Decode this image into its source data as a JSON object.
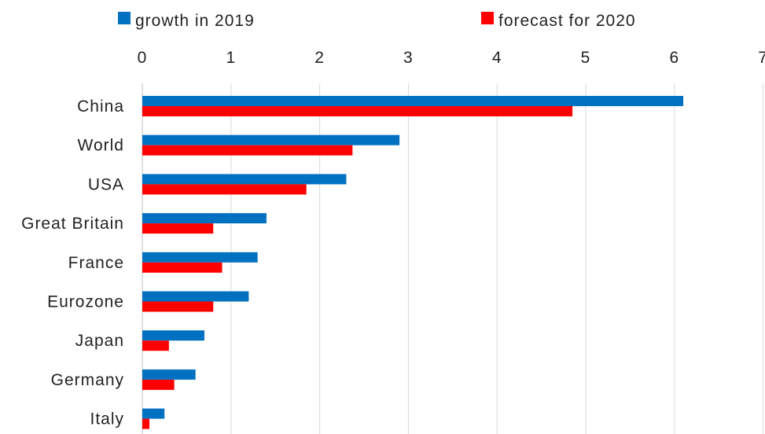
{
  "chart_data": {
    "type": "bar",
    "orientation": "horizontal",
    "title": "",
    "xlabel": "",
    "ylabel": "",
    "categories": [
      "China",
      "World",
      "USA",
      "Great Britain",
      "France",
      "Eurozone",
      "Japan",
      "Germany",
      "Italy"
    ],
    "series": [
      {
        "name": "growth in 2019",
        "color": "#0070c0",
        "values": [
          6.1,
          2.9,
          2.3,
          1.4,
          1.3,
          1.2,
          0.7,
          0.6,
          0.25
        ]
      },
      {
        "name": "forecast for 2020",
        "color": "#ff0000",
        "values": [
          4.85,
          2.37,
          1.85,
          0.8,
          0.9,
          0.8,
          0.3,
          0.36,
          0.08
        ]
      }
    ],
    "xlim": [
      0,
      7
    ],
    "xticks": [
      "0",
      "1",
      "2",
      "3",
      "4",
      "5",
      "6",
      "7"
    ],
    "grid": true,
    "legend_position": "top"
  }
}
